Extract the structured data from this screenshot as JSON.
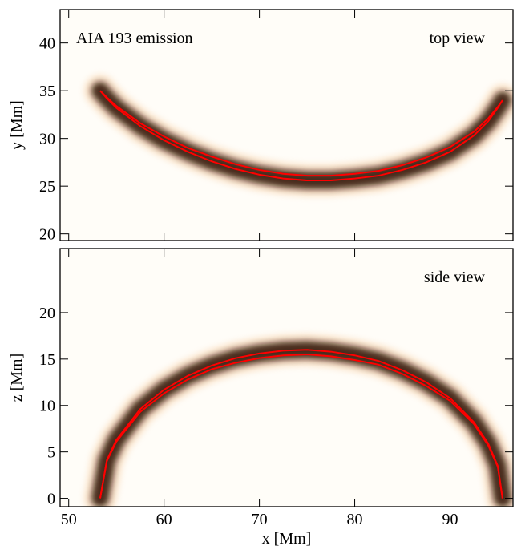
{
  "chart_data": [
    {
      "type": "line",
      "annotations": [
        "AIA 193 emission",
        "top view"
      ],
      "ylabel": "y [Mm]",
      "x": [
        53.3,
        54,
        55,
        57.5,
        60,
        62.5,
        65,
        67.5,
        70,
        72.5,
        75,
        77.5,
        80,
        82.5,
        85,
        87.5,
        90,
        92.5,
        94,
        95,
        95.5
      ],
      "series": [
        {
          "color": "#ff0000",
          "values": [
            35,
            34.2,
            33.2,
            31.3,
            29.8,
            28.6,
            27.6,
            26.8,
            26.2,
            25.8,
            25.6,
            25.6,
            25.8,
            26.1,
            26.7,
            27.5,
            28.6,
            30.3,
            31.8,
            33.2,
            34.0
          ]
        },
        {
          "color": "#ff0000",
          "values": [
            35,
            34.3,
            33.4,
            31.6,
            30.2,
            29.0,
            28.1,
            27.3,
            26.7,
            26.3,
            26.1,
            26.1,
            26.3,
            26.6,
            27.2,
            28.0,
            29.1,
            30.7,
            32.1,
            33.3,
            34.0
          ]
        }
      ],
      "xlim": [
        49.1,
        96.6
      ],
      "xticks": [
        50,
        60,
        70,
        80,
        90
      ],
      "ylim": [
        19.3,
        43.5
      ],
      "yticks": [
        20,
        25,
        30,
        35,
        40
      ]
    },
    {
      "type": "line",
      "annotations": [
        "side view"
      ],
      "ylabel": "z [Mm]",
      "xlabel": "x [Mm]",
      "x": [
        53.3,
        54,
        55,
        57.5,
        60,
        62.5,
        65,
        67.5,
        70,
        72.5,
        75,
        77.5,
        80,
        82.5,
        85,
        87.5,
        90,
        92.5,
        94,
        95,
        95.5
      ],
      "series": [
        {
          "color": "#ff0000",
          "values": [
            0,
            4.1,
            6.3,
            9.6,
            11.7,
            13.2,
            14.3,
            15.1,
            15.6,
            15.9,
            16.0,
            15.8,
            15.4,
            14.8,
            13.8,
            12.5,
            10.8,
            8.2,
            5.9,
            3.5,
            0
          ]
        },
        {
          "color": "#ff0000",
          "values": [
            0,
            4.0,
            6.1,
            9.3,
            11.3,
            12.8,
            13.9,
            14.6,
            15.1,
            15.4,
            15.5,
            15.3,
            14.9,
            14.4,
            13.4,
            12.1,
            10.5,
            8.0,
            5.7,
            3.4,
            0
          ]
        }
      ],
      "xlim": [
        49.1,
        96.6
      ],
      "xticks": [
        50,
        60,
        70,
        80,
        90
      ],
      "ylim": [
        -0.9,
        26.9
      ],
      "yticks": [
        0,
        5,
        10,
        15,
        20
      ]
    }
  ]
}
